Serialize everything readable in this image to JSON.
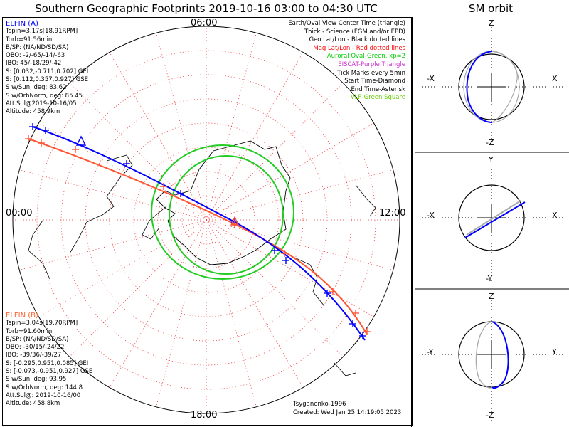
{
  "title": "Southern Geographic Footprints 2019-10-16 03:00 to 04:30 UTC",
  "orbit_title": "SM orbit",
  "mlt_labels": {
    "top": "06:00",
    "left": "00:00",
    "right": "12:00",
    "bottom": "18:00"
  },
  "elfin_a": {
    "header": "ELFIN (A)",
    "color": "#0000ff",
    "lines": [
      "Tspin=3.17s[18.91RPM]",
      "Torb=91.56min",
      "B/SP: (NA/ND/SD/SA)",
      "OBO: -2/-65/-14/-63",
      "IBO: 45/-18/29/-42",
      "S: [0.032,-0.711,0.702] GEI",
      "S: [0.112,0.357,0.927] GSE",
      "S w/Sun, deg: 83.62",
      "S w/OrbNorm, deg: 85.45",
      "Att.Sol@2019-10-16/05",
      "Altitude: 458.9km"
    ]
  },
  "elfin_b": {
    "header": "ELFIN (B)",
    "color": "#ff6633",
    "lines": [
      "Tspin=3.04s[19.70RPM]",
      "Torb=91.60min",
      "B/SP: (NA/ND/SD/SA)",
      "OBO: -30/15/-24/22",
      "IBO: -39/36/-39/27",
      "S: [-0.295,0.951,0.085] GEI",
      "S: [-0.073,-0.951,0.927] GSE",
      "S w/Sun, deg: 93.95",
      "S w/OrbNorm, deg: 144.8",
      "Att.Sol@: 2019-10-16/00",
      "Altitude: 458.8km"
    ]
  },
  "legend": [
    {
      "text": "Earth/Oval View Center Time (triangle)",
      "color": "#000000"
    },
    {
      "text": "Thick - Science (FGM and/or EPD)",
      "color": "#000000"
    },
    {
      "text": "Geo Lat/Lon - Black dotted lines",
      "color": "#000000"
    },
    {
      "text": "Mag Lat/Lon - Red dotted lines",
      "color": "#ff0000"
    },
    {
      "text": "Auroral Oval-Green, kp=2",
      "color": "#00cc00"
    },
    {
      "text": "EISCAT-Purple Triangle",
      "color": "#cc33cc"
    },
    {
      "text": "Tick Marks every 5min",
      "color": "#000000"
    },
    {
      "text": "Start Time-Diamond",
      "color": "#000000"
    },
    {
      "text": "End Time-Asterisk",
      "color": "#000000"
    },
    {
      "text": "VLF-Green Square",
      "color": "#66cc00"
    }
  ],
  "credits": [
    "Tsyganenko-1996",
    "Created: Wed Jan 25 14:19:05 2023"
  ],
  "orbit_panels": [
    {
      "top": "Z",
      "bottom": "-Z",
      "left": "-X",
      "right": "X"
    },
    {
      "top": "Y",
      "bottom": "-Y",
      "left": "-X",
      "right": "X"
    },
    {
      "top": "Z",
      "bottom": "-Z",
      "left": "-Y",
      "right": "Y"
    }
  ]
}
